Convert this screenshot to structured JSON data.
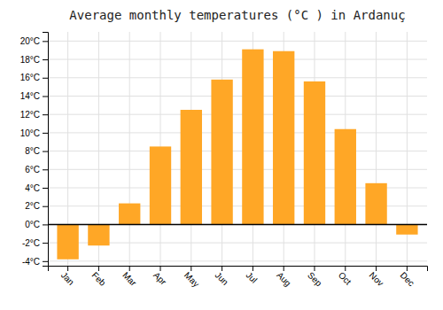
{
  "chart_data": {
    "type": "bar",
    "title": "Average monthly temperatures (°C ) in Ardanuç",
    "categories": [
      "Jan",
      "Feb",
      "Mar",
      "Apr",
      "May",
      "Jun",
      "Jul",
      "Aug",
      "Sep",
      "Oct",
      "Nov",
      "Dec"
    ],
    "values": [
      -3.8,
      -2.3,
      2.3,
      8.5,
      12.5,
      15.8,
      19.1,
      18.9,
      15.6,
      10.4,
      4.5,
      -1.1
    ],
    "color": "#FFA726",
    "ylim": [
      -4.5,
      21
    ],
    "yticks": [
      {
        "value": -4,
        "label": "-4°C"
      },
      {
        "value": -2,
        "label": "-2°C"
      },
      {
        "value": 0,
        "label": "0°C"
      },
      {
        "value": 2,
        "label": "2°C"
      },
      {
        "value": 4,
        "label": "4°C"
      },
      {
        "value": 6,
        "label": "6°C"
      },
      {
        "value": 8,
        "label": "8°C"
      },
      {
        "value": 10,
        "label": "10°C"
      },
      {
        "value": 12,
        "label": "12°C"
      },
      {
        "value": 14,
        "label": "14°C"
      },
      {
        "value": 16,
        "label": "16°C"
      },
      {
        "value": 18,
        "label": "18°C"
      },
      {
        "value": 20,
        "label": "20°C"
      }
    ],
    "grid": true
  }
}
